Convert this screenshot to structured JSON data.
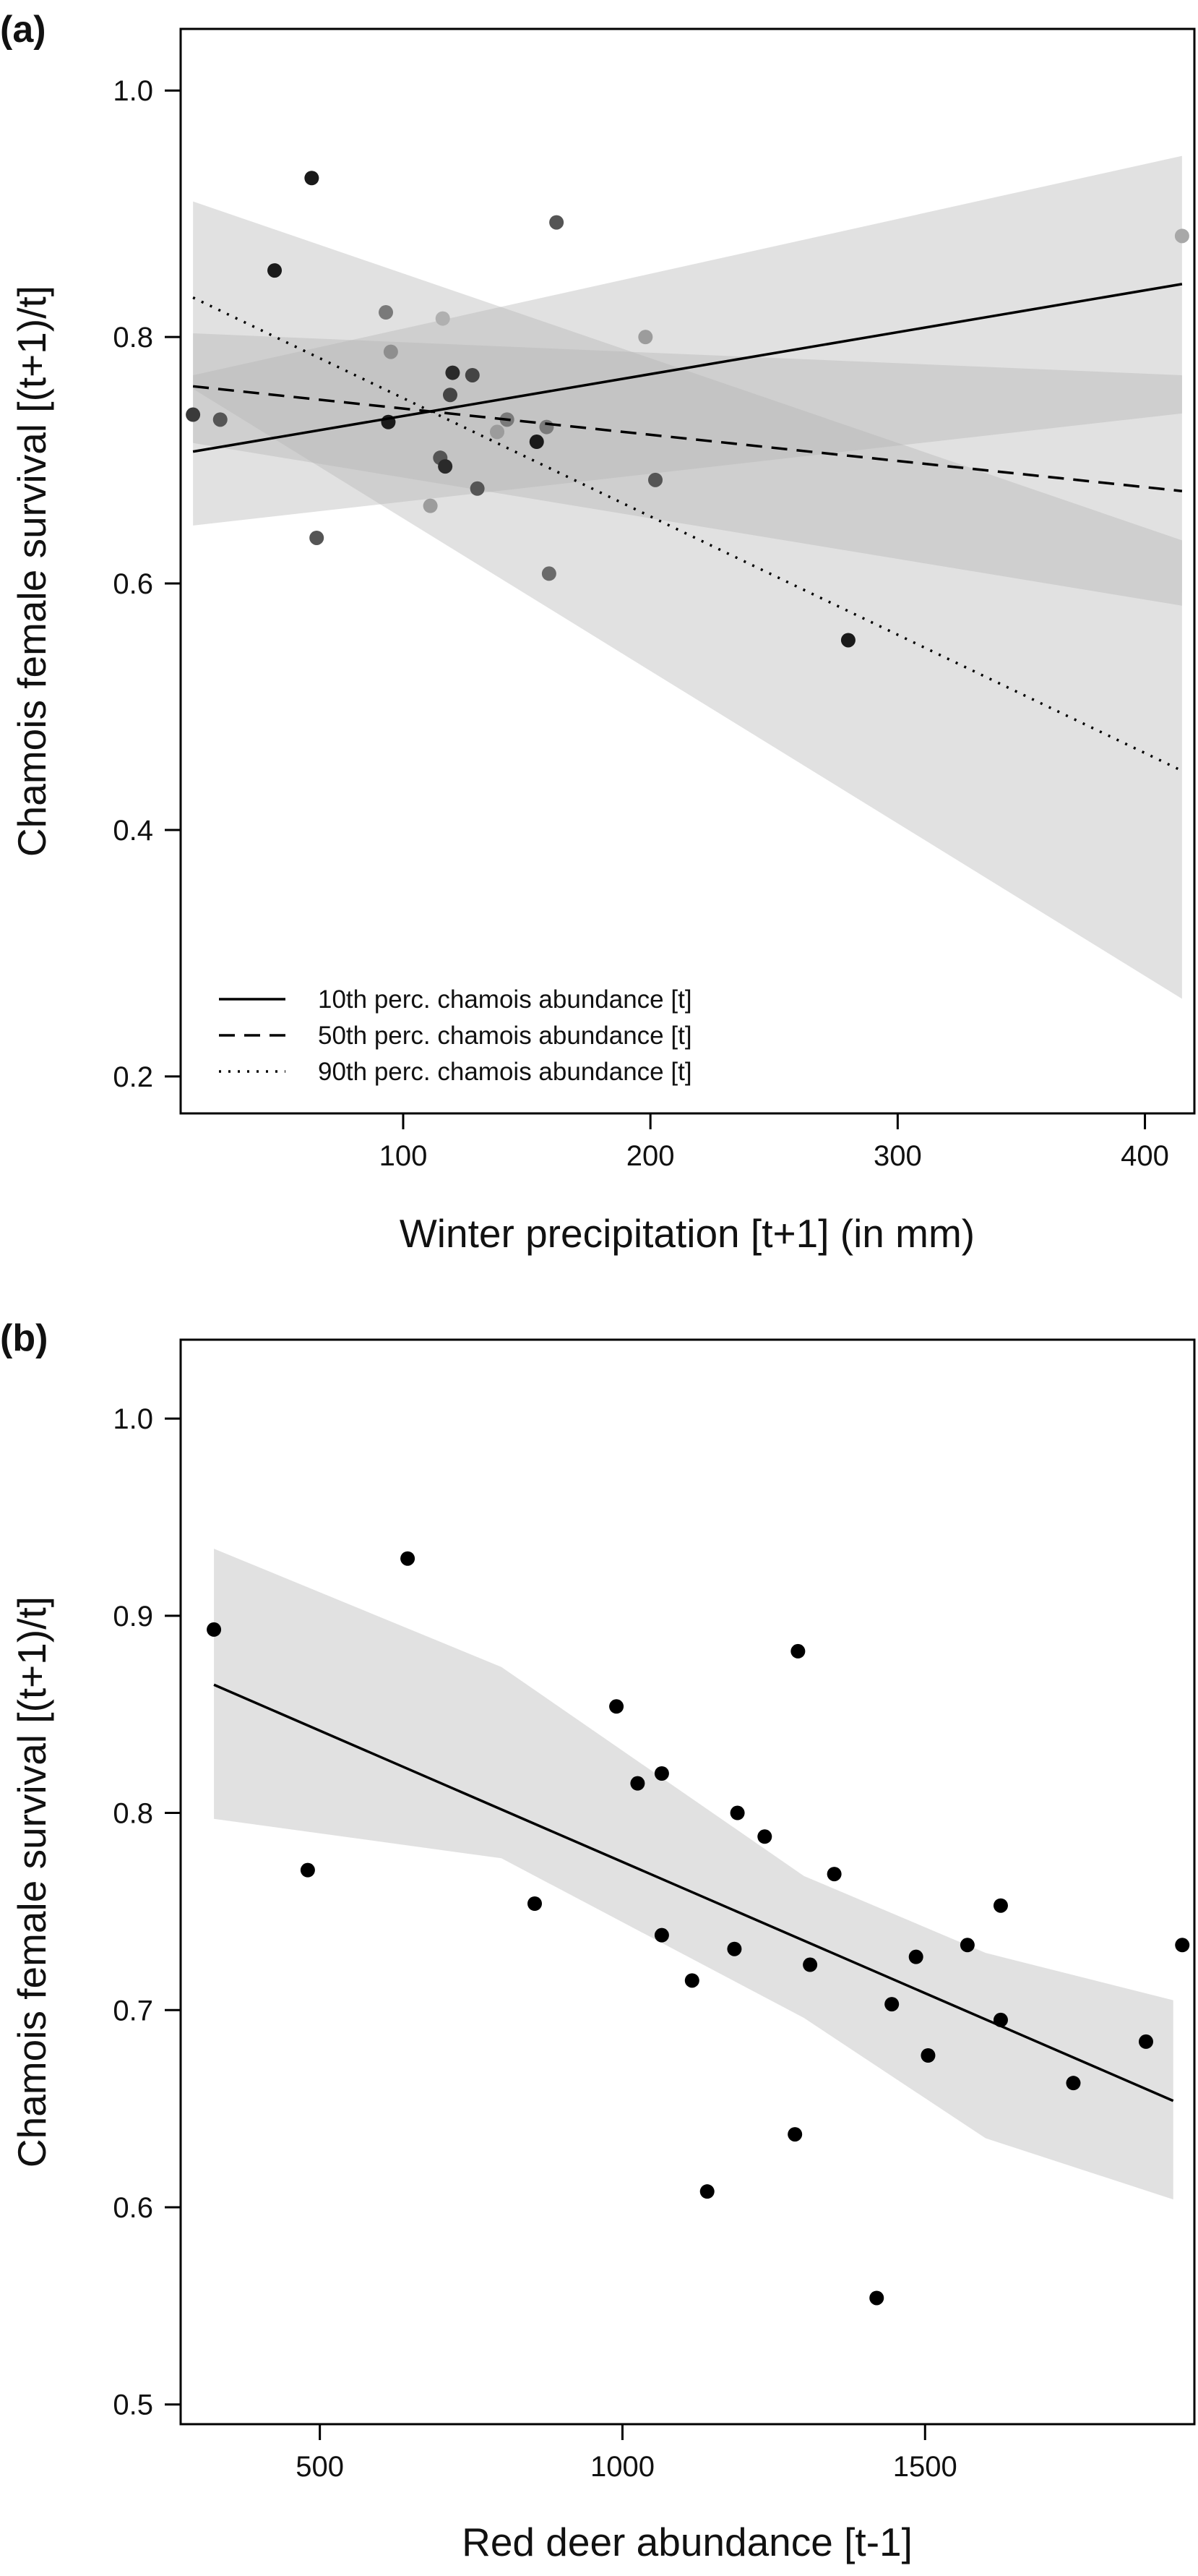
{
  "chart_data": [
    {
      "type": "scatter",
      "panel_label": "(a)",
      "xlabel": "Winter precipitation [t+1] (in mm)",
      "ylabel": "Chamois female survival [(t+1)/t]",
      "xlim": [
        10,
        420
      ],
      "ylim": [
        0.17,
        1.05
      ],
      "xticks": [
        100,
        200,
        300,
        400
      ],
      "yticks": [
        0.2,
        0.4,
        0.6,
        0.8,
        1.0
      ],
      "ytick_labels": [
        "0.2",
        "0.4",
        "0.6",
        "0.8",
        "1.0"
      ],
      "grid": false,
      "legend_position": "bottom-left",
      "points": [
        {
          "x": 15,
          "y": 0.737,
          "shade": "#3a3a3a"
        },
        {
          "x": 26,
          "y": 0.733,
          "shade": "#555555"
        },
        {
          "x": 48,
          "y": 0.854,
          "shade": "#1a1a1a"
        },
        {
          "x": 63,
          "y": 0.929,
          "shade": "#1a1a1a"
        },
        {
          "x": 65,
          "y": 0.637,
          "shade": "#555555"
        },
        {
          "x": 93,
          "y": 0.82,
          "shade": "#7a7a7a"
        },
        {
          "x": 94,
          "y": 0.731,
          "shade": "#1a1a1a"
        },
        {
          "x": 95,
          "y": 0.788,
          "shade": "#8e8e8e"
        },
        {
          "x": 111,
          "y": 0.663,
          "shade": "#9c9c9c"
        },
        {
          "x": 115,
          "y": 0.702,
          "shade": "#555555"
        },
        {
          "x": 116,
          "y": 0.815,
          "shade": "#b0b0b0"
        },
        {
          "x": 117,
          "y": 0.695,
          "shade": "#2a2a2a"
        },
        {
          "x": 119,
          "y": 0.753,
          "shade": "#444444"
        },
        {
          "x": 120,
          "y": 0.771,
          "shade": "#2a2a2a"
        },
        {
          "x": 128,
          "y": 0.769,
          "shade": "#444444"
        },
        {
          "x": 130,
          "y": 0.677,
          "shade": "#555555"
        },
        {
          "x": 138,
          "y": 0.723,
          "shade": "#9c9c9c"
        },
        {
          "x": 142,
          "y": 0.733,
          "shade": "#7a7a7a"
        },
        {
          "x": 154,
          "y": 0.715,
          "shade": "#1a1a1a"
        },
        {
          "x": 158,
          "y": 0.727,
          "shade": "#7a7a7a"
        },
        {
          "x": 159,
          "y": 0.608,
          "shade": "#6a6a6a"
        },
        {
          "x": 162,
          "y": 0.893,
          "shade": "#555555"
        },
        {
          "x": 198,
          "y": 0.8,
          "shade": "#9c9c9c"
        },
        {
          "x": 202,
          "y": 0.684,
          "shade": "#555555"
        },
        {
          "x": 280,
          "y": 0.554,
          "shade": "#1a1a1a"
        },
        {
          "x": 415,
          "y": 0.882,
          "shade": "#a8a8a8"
        }
      ],
      "series": [
        {
          "name": "10th perc. chamois abundance [t]",
          "dash": "solid",
          "x": [
            15,
            415
          ],
          "y": [
            0.707,
            0.843
          ],
          "band_lower": [
            0.647,
            0.738
          ],
          "band_upper": [
            0.769,
            0.947
          ]
        },
        {
          "name": "50th perc. chamois abundance [t]",
          "dash": "dashed",
          "x": [
            15,
            415
          ],
          "y": [
            0.76,
            0.675
          ],
          "band_lower": [
            0.714,
            0.582
          ],
          "band_upper": [
            0.803,
            0.769
          ]
        },
        {
          "name": "90th perc. chamois abundance [t]",
          "dash": "dotted",
          "x": [
            15,
            415
          ],
          "y": [
            0.832,
            0.448
          ],
          "band_lower": [
            0.758,
            0.263
          ],
          "band_upper": [
            0.91,
            0.635
          ]
        }
      ]
    },
    {
      "type": "scatter",
      "panel_label": "(b)",
      "xlabel": "Red deer abundance [t-1]",
      "ylabel": "Chamois female survival [(t+1)/t]",
      "xlim": [
        270,
        1945
      ],
      "ylim": [
        0.49,
        1.04
      ],
      "xticks": [
        500,
        1000,
        1500
      ],
      "yticks": [
        0.5,
        0.6,
        0.7,
        0.8,
        0.9,
        1.0
      ],
      "ytick_labels": [
        "0.5",
        "0.6",
        "0.7",
        "0.8",
        "0.9",
        "1.0"
      ],
      "grid": false,
      "points": [
        {
          "x": 325,
          "y": 0.893
        },
        {
          "x": 480,
          "y": 0.771
        },
        {
          "x": 645,
          "y": 0.929
        },
        {
          "x": 855,
          "y": 0.754
        },
        {
          "x": 990,
          "y": 0.854
        },
        {
          "x": 1025,
          "y": 0.815
        },
        {
          "x": 1065,
          "y": 0.82
        },
        {
          "x": 1065,
          "y": 0.738
        },
        {
          "x": 1115,
          "y": 0.715
        },
        {
          "x": 1140,
          "y": 0.608
        },
        {
          "x": 1185,
          "y": 0.731
        },
        {
          "x": 1190,
          "y": 0.8
        },
        {
          "x": 1235,
          "y": 0.788
        },
        {
          "x": 1285,
          "y": 0.637
        },
        {
          "x": 1290,
          "y": 0.882
        },
        {
          "x": 1310,
          "y": 0.723
        },
        {
          "x": 1350,
          "y": 0.769
        },
        {
          "x": 1420,
          "y": 0.554
        },
        {
          "x": 1445,
          "y": 0.703
        },
        {
          "x": 1485,
          "y": 0.727
        },
        {
          "x": 1505,
          "y": 0.677
        },
        {
          "x": 1570,
          "y": 0.733
        },
        {
          "x": 1625,
          "y": 0.753
        },
        {
          "x": 1625,
          "y": 0.695
        },
        {
          "x": 1745,
          "y": 0.663
        },
        {
          "x": 1865,
          "y": 0.684
        },
        {
          "x": 1925,
          "y": 0.733
        }
      ],
      "series": [
        {
          "dash": "solid",
          "x": [
            325,
            1910
          ],
          "y": [
            0.865,
            0.654
          ],
          "band_x": [
            325,
            800,
            1300,
            1600,
            1910
          ],
          "band_lower": [
            0.797,
            0.777,
            0.696,
            0.635,
            0.604
          ],
          "band_upper": [
            0.934,
            0.874,
            0.768,
            0.729,
            0.705
          ]
        }
      ]
    }
  ]
}
